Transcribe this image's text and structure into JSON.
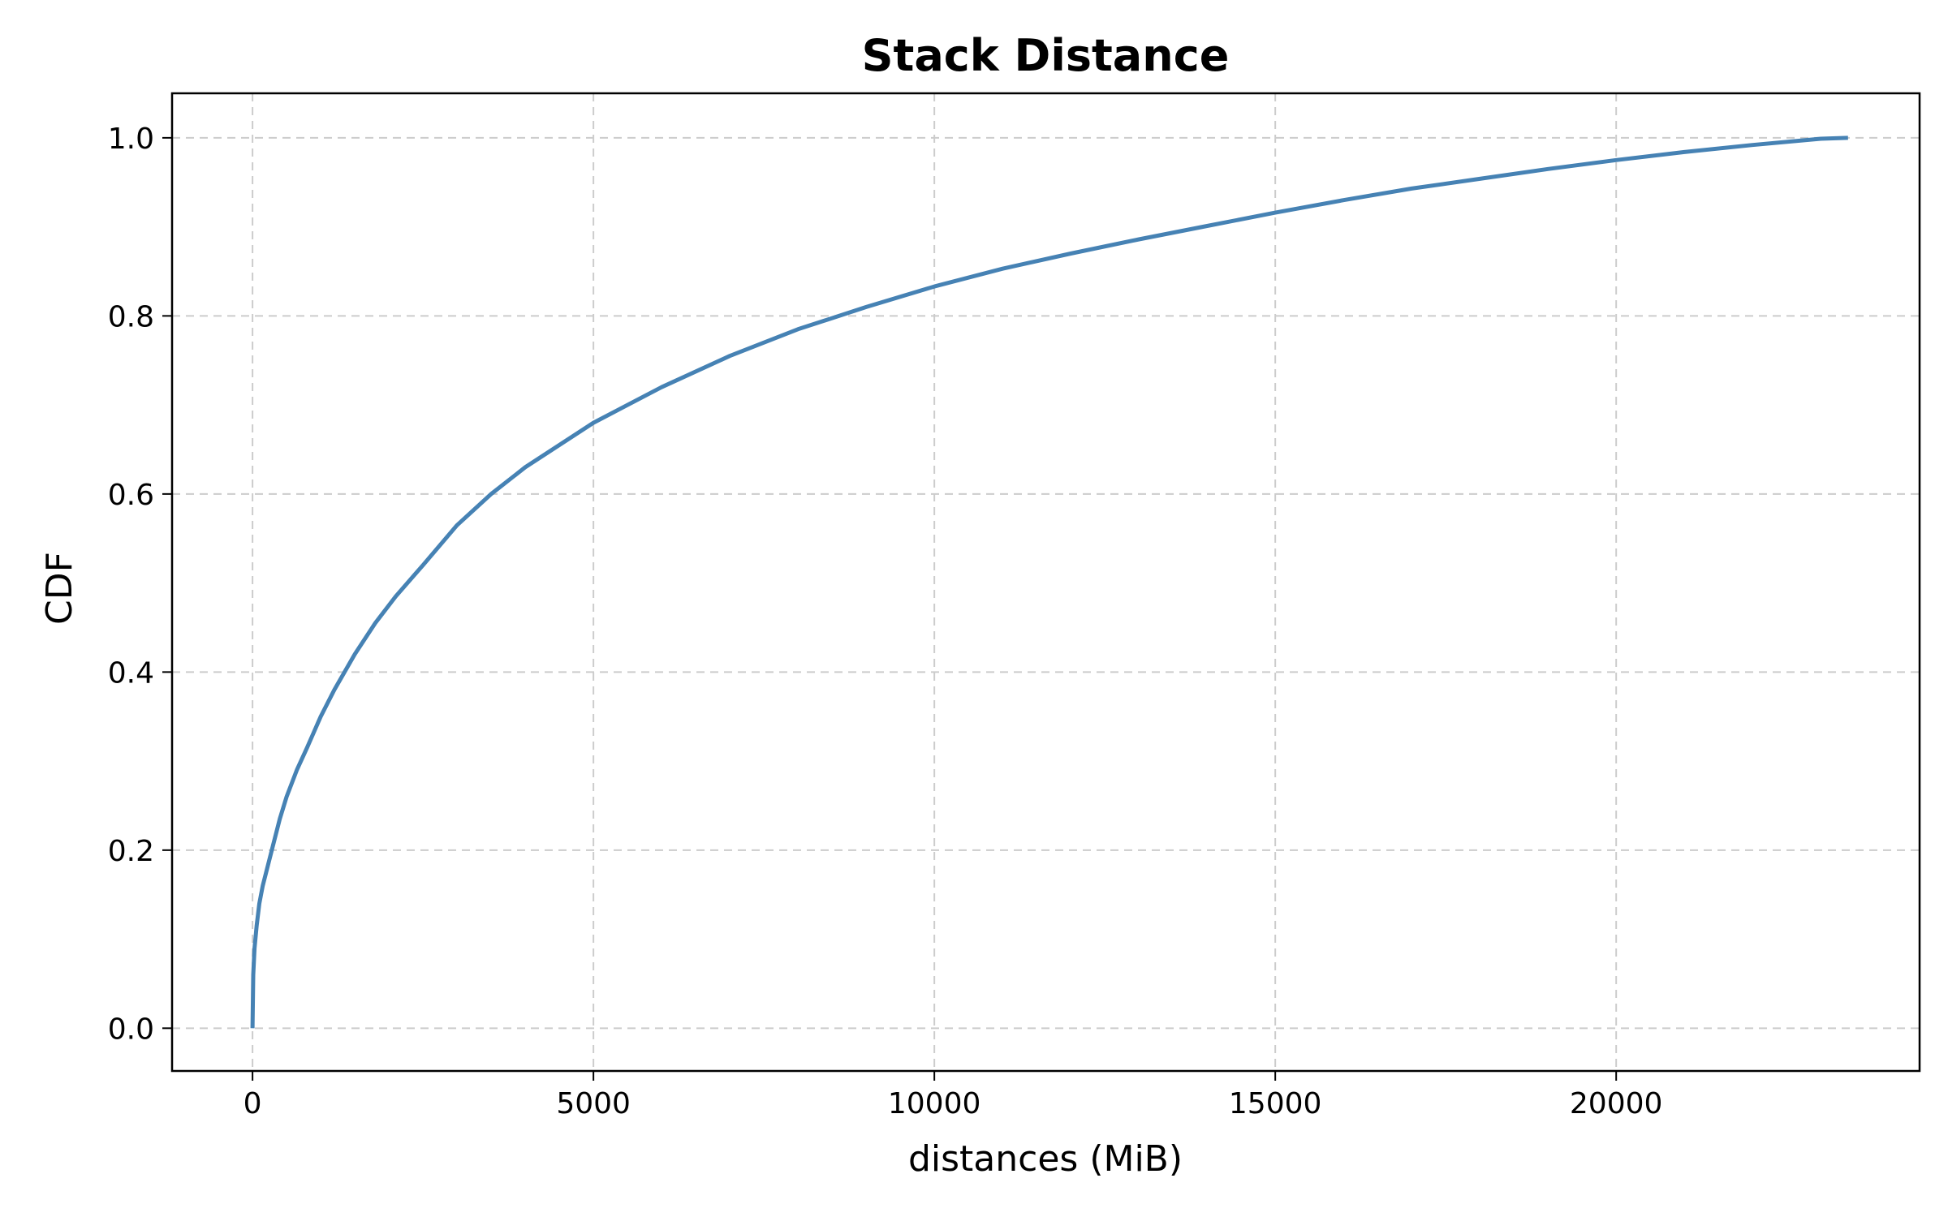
{
  "chart_data": {
    "type": "line",
    "title": "Stack Distance",
    "xlabel": "distances (MiB)",
    "ylabel": "CDF",
    "xlim": [
      -1180,
      24450
    ],
    "ylim": [
      -0.048,
      1.05
    ],
    "xticks": [
      0,
      5000,
      10000,
      15000,
      20000
    ],
    "xtick_labels": [
      "0",
      "5000",
      "10000",
      "15000",
      "20000"
    ],
    "yticks": [
      0.0,
      0.2,
      0.4,
      0.6,
      0.8,
      1.0
    ],
    "ytick_labels": [
      "0.0",
      "0.2",
      "0.4",
      "0.6",
      "0.8",
      "1.0"
    ],
    "grid": true,
    "line_color": "#4682b4",
    "series": [
      {
        "x": [
          0,
          10,
          30,
          60,
          100,
          150,
          200,
          300,
          400,
          500,
          650,
          800,
          1000,
          1200,
          1500,
          1800,
          2100,
          2500,
          3000,
          3500,
          4000,
          4500,
          5000,
          6000,
          7000,
          8000,
          9000,
          10000,
          11000,
          12000,
          13000,
          14000,
          15000,
          16000,
          17000,
          18000,
          19000,
          20000,
          21000,
          22000,
          23000,
          23400
        ],
        "y": [
          0.0,
          0.06,
          0.09,
          0.115,
          0.14,
          0.16,
          0.175,
          0.205,
          0.235,
          0.26,
          0.29,
          0.315,
          0.35,
          0.38,
          0.42,
          0.455,
          0.485,
          0.52,
          0.565,
          0.6,
          0.63,
          0.655,
          0.68,
          0.72,
          0.755,
          0.785,
          0.81,
          0.833,
          0.853,
          0.87,
          0.886,
          0.901,
          0.916,
          0.93,
          0.943,
          0.954,
          0.965,
          0.975,
          0.984,
          0.992,
          0.999,
          1.0
        ]
      }
    ]
  }
}
